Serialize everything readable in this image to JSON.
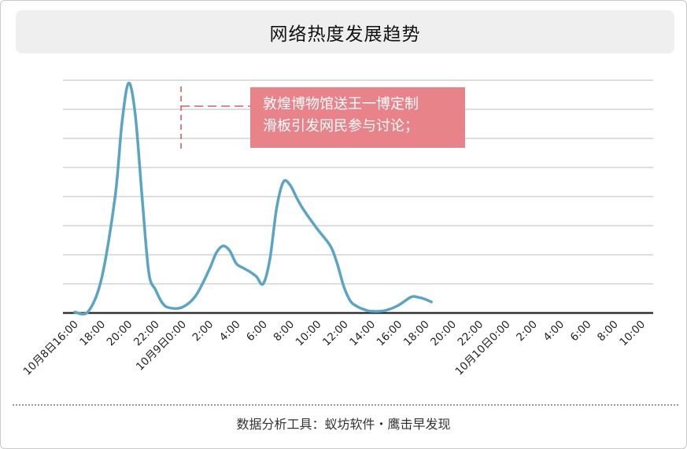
{
  "title": "网络热度发展趋势",
  "annotation": {
    "line1": "敦煌博物馆送王一博定制",
    "line2": "滑板引发网民参与讨论；"
  },
  "footer": "数据分析工具：蚁坊软件・鹰击早发现",
  "colors": {
    "line": "#5ba5c4",
    "annotation_bg": "#e8838a",
    "annotation_leader": "#e05a67",
    "grid": "#bdbdbd",
    "axis": "#333333"
  },
  "chart_data": {
    "type": "line",
    "title": "网络热度发展趋势",
    "xlabel": "",
    "ylabel": "",
    "grid": true,
    "legend": "none",
    "ylim": [
      0,
      8
    ],
    "y_tick_labels_shown": false,
    "x_tick_labels": [
      "10月8日16:00",
      "18:00",
      "20:00",
      "22:00",
      "10月9日0:00",
      "2:00",
      "4:00",
      "6:00",
      "8:00",
      "10:00",
      "12:00",
      "14:00",
      "16:00",
      "18:00",
      "20:00",
      "22:00",
      "10月10日0:00",
      "2:00",
      "4:00",
      "6:00",
      "8:00",
      "10:00"
    ],
    "series": [
      {
        "values": [
          [
            0,
            0.03
          ],
          [
            1,
            0.05
          ],
          [
            2,
            1.2
          ],
          [
            3,
            4.0
          ],
          [
            3.5,
            6.5
          ],
          [
            4,
            7.9
          ],
          [
            4.5,
            6.8
          ],
          [
            5,
            4.0
          ],
          [
            5.5,
            1.4
          ],
          [
            6,
            0.8
          ],
          [
            6.5,
            0.35
          ],
          [
            7,
            0.18
          ],
          [
            8,
            0.2
          ],
          [
            9,
            0.6
          ],
          [
            10,
            1.5
          ],
          [
            10.5,
            2.05
          ],
          [
            11,
            2.3
          ],
          [
            11.5,
            2.15
          ],
          [
            12,
            1.7
          ],
          [
            12.5,
            1.55
          ],
          [
            13,
            1.42
          ],
          [
            13.5,
            1.25
          ],
          [
            14,
            1.0
          ],
          [
            14.5,
            1.85
          ],
          [
            15,
            3.6
          ],
          [
            15.5,
            4.5
          ],
          [
            16,
            4.4
          ],
          [
            16.5,
            3.95
          ],
          [
            17,
            3.55
          ],
          [
            18,
            2.9
          ],
          [
            19,
            2.3
          ],
          [
            19.5,
            1.7
          ],
          [
            20,
            0.9
          ],
          [
            20.5,
            0.4
          ],
          [
            21,
            0.22
          ],
          [
            21.5,
            0.12
          ],
          [
            22,
            0.06
          ],
          [
            23,
            0.08
          ],
          [
            24,
            0.25
          ],
          [
            25,
            0.55
          ],
          [
            25.5,
            0.54
          ],
          [
            26,
            0.48
          ],
          [
            26.5,
            0.38
          ]
        ]
      }
    ],
    "annotation": {
      "x": 4.5,
      "text": [
        "敦煌博物馆送王一博定制",
        "滑板引发网民参与讨论；"
      ]
    }
  }
}
